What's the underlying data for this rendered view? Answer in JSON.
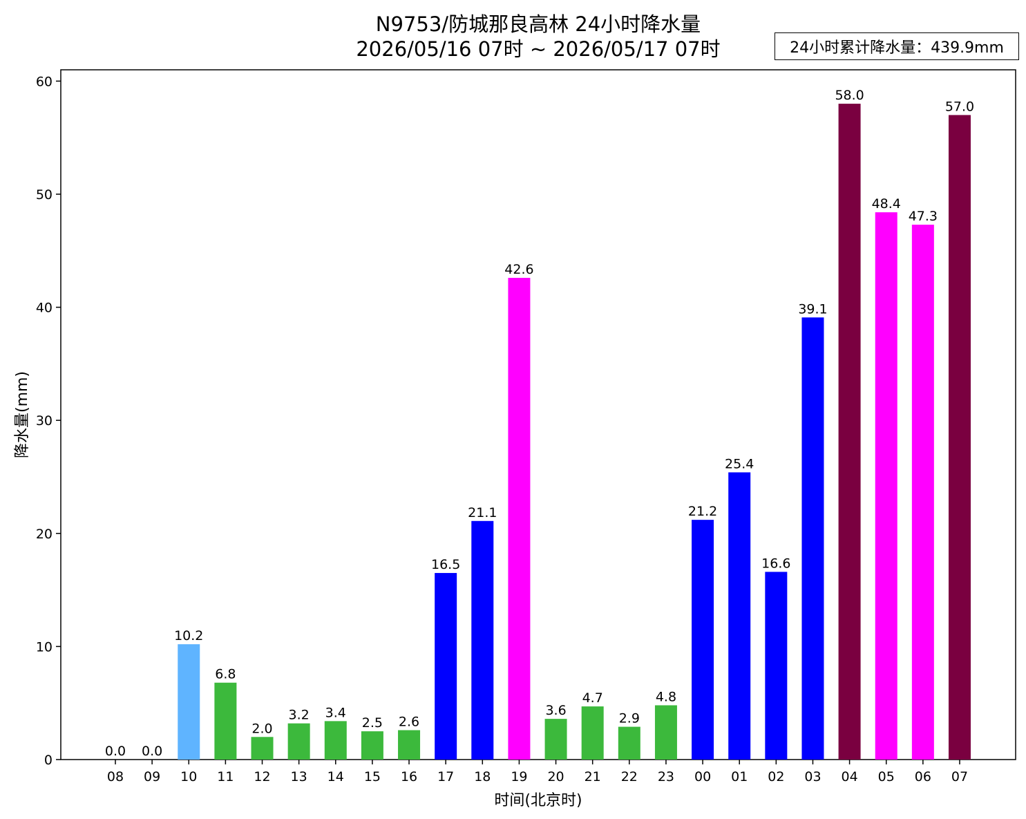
{
  "title_line1": "N9753/防城那良高林 24小时降水量",
  "title_line2": "2026/05/16 07时 ~ 2026/05/17 07时",
  "total_label": "24小时累计降水量：439.9mm",
  "chart_data": {
    "type": "bar",
    "title": "N9753/防城那良高林 24小时降水量 2026/05/16 07时 ~ 2026/05/17 07时",
    "xlabel": "时间(北京时)",
    "ylabel": "降水量(mm)",
    "ylim": [
      0,
      61
    ],
    "yticks": [
      0,
      10,
      20,
      30,
      40,
      50,
      60
    ],
    "categories": [
      "08",
      "09",
      "10",
      "11",
      "12",
      "13",
      "14",
      "15",
      "16",
      "17",
      "18",
      "19",
      "20",
      "21",
      "22",
      "23",
      "00",
      "01",
      "02",
      "03",
      "04",
      "05",
      "06",
      "07"
    ],
    "values": [
      0.0,
      0.0,
      10.2,
      6.8,
      2.0,
      3.2,
      3.4,
      2.5,
      2.6,
      16.5,
      21.1,
      42.6,
      3.6,
      4.7,
      2.9,
      4.8,
      21.2,
      25.4,
      16.6,
      39.1,
      58.0,
      48.4,
      47.3,
      57.0
    ],
    "value_labels": [
      "0.0",
      "0.0",
      "10.2",
      "6.8",
      "2.0",
      "3.2",
      "3.4",
      "2.5",
      "2.6",
      "16.5",
      "21.1",
      "42.6",
      "3.6",
      "4.7",
      "2.9",
      "4.8",
      "21.2",
      "25.4",
      "16.6",
      "39.1",
      "58.0",
      "48.4",
      "47.3",
      "57.0"
    ],
    "colors": [
      "#3cb93c",
      "#3cb93c",
      "#5fb4ff",
      "#3cb93c",
      "#3cb93c",
      "#3cb93c",
      "#3cb93c",
      "#3cb93c",
      "#3cb93c",
      "#0000ff",
      "#0000ff",
      "#ff00ff",
      "#3cb93c",
      "#3cb93c",
      "#3cb93c",
      "#3cb93c",
      "#0000ff",
      "#0000ff",
      "#0000ff",
      "#0000ff",
      "#7a0040",
      "#ff00ff",
      "#ff00ff",
      "#7a0040"
    ],
    "grid": false,
    "legend": "none"
  }
}
